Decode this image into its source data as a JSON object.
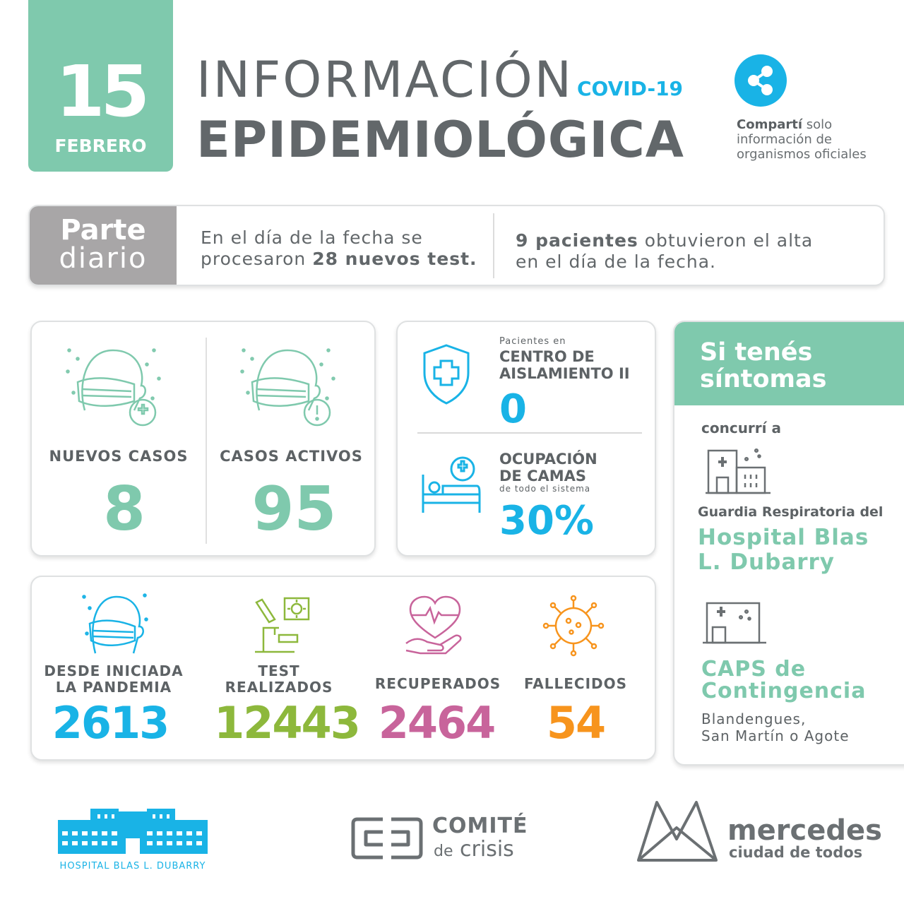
{
  "header": {
    "day": "15",
    "month": "FEBRERO",
    "title_line1": "INFORMACIÓN",
    "title_tag": "COVID-19",
    "title_line2": "EPIDEMIOLÓGICA",
    "share_bold": "Compartí",
    "share_rest1": " solo",
    "share_rest2": "información de",
    "share_rest3": "organismos oficiales"
  },
  "parte": {
    "label1": "Parte",
    "label2": "diario",
    "test_line1": "En el día de la fecha se",
    "test_pre": "procesaron ",
    "test_bold": "28 nuevos test.",
    "alta_bold": "9 pacientes",
    "alta_rest": " obtuvieron el alta",
    "alta_line2": "en el día de la fecha."
  },
  "casos": {
    "nuevos_label": "NUEVOS CASOS",
    "nuevos_value": "8",
    "activos_label": "CASOS ACTIVOS",
    "activos_value": "95"
  },
  "aislamiento": {
    "small": "Pacientes en",
    "head1": "CENTRO DE",
    "head2": "AISLAMIENTO II",
    "value": "0",
    "camas1": "OCUPACIÓN",
    "camas2": "DE CAMAS",
    "camas_sub": "de todo el sistema",
    "camas_value": "30%"
  },
  "sintomas": {
    "title1": "Si tenés",
    "title2": "síntomas",
    "concurri": "concurrí a",
    "guardia": "Guardia Respiratoria del",
    "hosp1": "Hospital Blas",
    "hosp2": "L. Dubarry",
    "caps1": "CAPS de",
    "caps2": "Contingencia",
    "loc1": "Blandengues,",
    "loc2": "San Martín o Agote"
  },
  "totales": {
    "pandemia_label1": "DESDE INICIADA",
    "pandemia_label2": "LA PANDEMIA",
    "pandemia_value": "2613",
    "test_label1": "TEST",
    "test_label2": "REALIZADOS",
    "test_value": "12443",
    "recup_label": "RECUPERADOS",
    "recup_value": "2464",
    "fallec_label": "FALLECIDOS",
    "fallec_value": "54"
  },
  "footer": {
    "hospital": "HOSPITAL BLAS L. DUBARRY",
    "comite1": "COMITÉ",
    "comite2a": "de",
    "comite2b": "crisis",
    "merc1": "mercedes",
    "merc2": "ciudad de todos"
  },
  "colors": {
    "green": "#7fc9ad",
    "blue": "#19b3e6",
    "olive": "#8db83c",
    "pink": "#c8649b",
    "orange": "#f7941d",
    "gray": "#62676a"
  },
  "icons": [
    "share-icon",
    "mask-plus-icon",
    "mask-alert-icon",
    "shield-cross-icon",
    "hospital-bed-icon",
    "mask-icon",
    "microscope-icon",
    "heart-hand-icon",
    "virus-icon",
    "hospital-building-icon",
    "caps-building-icon",
    "hospital-logo-icon",
    "comite-logo-icon",
    "mercedes-logo-icon"
  ]
}
